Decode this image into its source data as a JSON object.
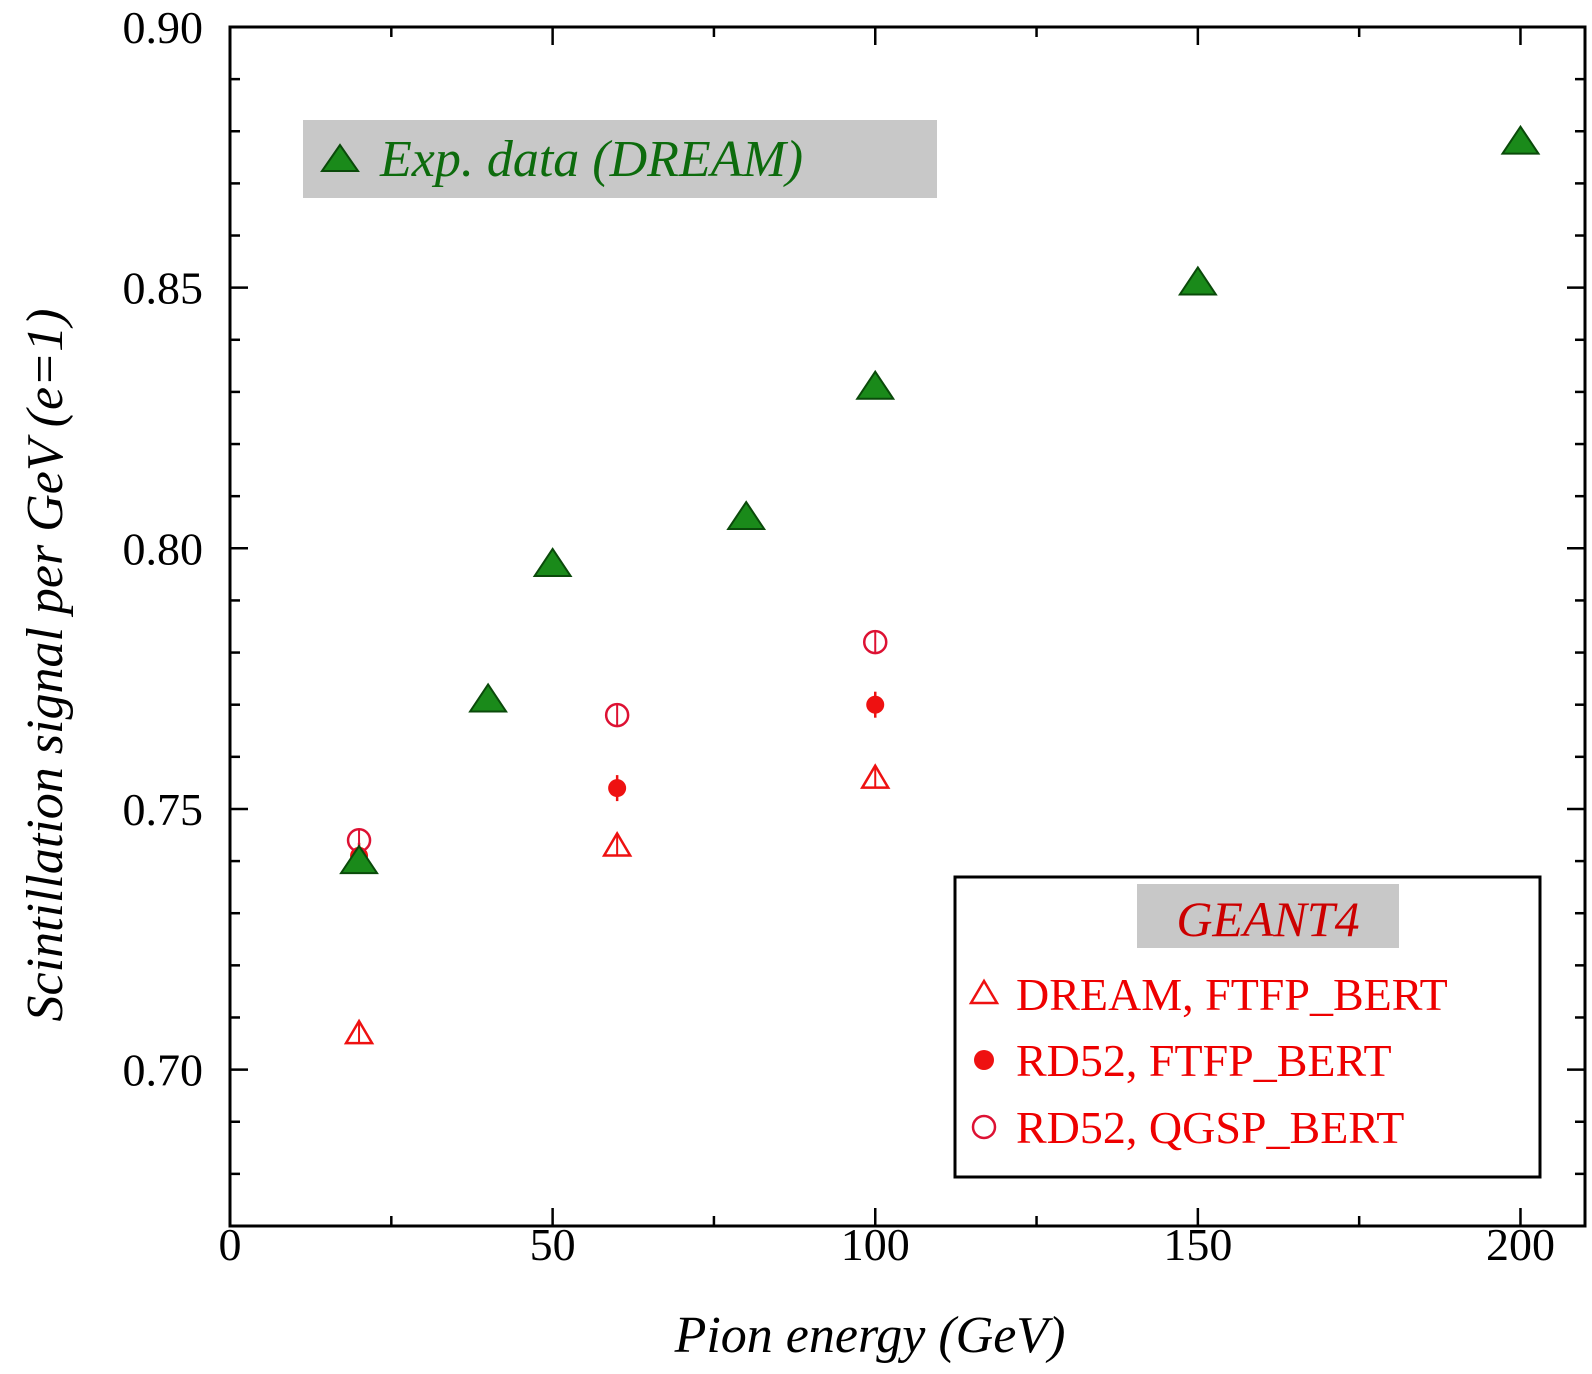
{
  "chart_data": {
    "type": "scatter",
    "xlabel": "Pion energy (GeV)",
    "ylabel": "Scintillation signal per GeV (e=1)",
    "xlim": [
      0,
      210
    ],
    "ylim": [
      0.67,
      0.9
    ],
    "x_ticks": [
      0,
      50,
      100,
      150,
      200
    ],
    "y_ticks": [
      0.7,
      0.75,
      0.8,
      0.85,
      0.9
    ],
    "x_tick_labels": [
      "0",
      "50",
      "100",
      "150",
      "200"
    ],
    "y_tick_labels": [
      "0.70",
      "0.75",
      "0.80",
      "0.85",
      "0.90"
    ],
    "grid": false,
    "series": [
      {
        "name": "Exp. data (DREAM)",
        "marker": "filled-triangle",
        "color": "#1a8a1a",
        "x": [
          20,
          40,
          50,
          80,
          100,
          150,
          200
        ],
        "y": [
          0.74,
          0.771,
          0.797,
          0.806,
          0.831,
          0.851,
          0.878
        ]
      },
      {
        "name": "DREAM, FTFP_BERT",
        "marker": "open-triangle",
        "color": "#ee1111",
        "x": [
          20,
          60,
          100
        ],
        "y": [
          0.707,
          0.743,
          0.756
        ]
      },
      {
        "name": "RD52, FTFP_BERT",
        "marker": "filled-circle",
        "color": "#ee1111",
        "x": [
          20,
          60,
          100
        ],
        "y": [
          0.741,
          0.754,
          0.77
        ]
      },
      {
        "name": "RD52, QGSP_BERT",
        "marker": "open-circle",
        "color": "#dd1133",
        "x": [
          20,
          60,
          100
        ],
        "y": [
          0.744,
          0.768,
          0.782
        ]
      }
    ],
    "legends": [
      {
        "title": "",
        "placement": "top-left",
        "entries": [
          "Exp. data (DREAM)"
        ]
      },
      {
        "title": "GEANT4",
        "placement": "bottom-right",
        "entries": [
          "DREAM, FTFP_BERT",
          "RD52, FTFP_BERT",
          "RD52, QGSP_BERT"
        ]
      }
    ]
  },
  "colors": {
    "exp_fill": "#1a8a1a",
    "exp_text": "#0d6b0d",
    "legend_bg": "#c8c8c8",
    "geant_title": "#cc0000",
    "sim": "#ee1111"
  }
}
